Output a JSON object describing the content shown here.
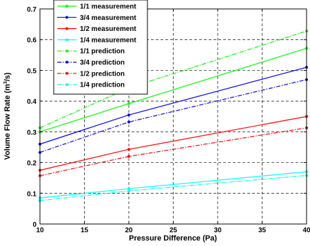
{
  "chart_data": {
    "type": "line",
    "xlabel": "Pressure Difference (Pa)",
    "ylabel_main": "Volume Flow Rate (m",
    "ylabel_sup": "3",
    "ylabel_tail": "/s)",
    "xlim": [
      10,
      40
    ],
    "ylim": [
      0,
      0.7
    ],
    "x_ticks": [
      "10",
      "15",
      "20",
      "25",
      "30",
      "35",
      "40"
    ],
    "y_ticks": [
      "0",
      "0.1",
      "0.2",
      "0.3",
      "0.4",
      "0.5",
      "0.6",
      "0.7"
    ],
    "grid": true,
    "legend_position": "top-left",
    "series": [
      {
        "name": "1/1 measurement",
        "color": "#00ff00",
        "style": "solid",
        "x": [
          10,
          20,
          40
        ],
        "y": [
          0.3,
          0.392,
          0.572
        ]
      },
      {
        "name": "3/4 measurement",
        "color": "#0000ff",
        "style": "solid",
        "x": [
          10,
          20,
          40
        ],
        "y": [
          0.26,
          0.355,
          0.51
        ]
      },
      {
        "name": "1/2 measurement",
        "color": "#ff0000",
        "style": "solid",
        "x": [
          10,
          20,
          40
        ],
        "y": [
          0.175,
          0.243,
          0.35
        ]
      },
      {
        "name": "1/4 measurement",
        "color": "#00ffff",
        "style": "solid",
        "x": [
          10,
          20,
          40
        ],
        "y": [
          0.085,
          0.115,
          0.17
        ]
      },
      {
        "name": "1/1 prediction",
        "color": "#00ff00",
        "style": "dashdot",
        "x": [
          10,
          20,
          40
        ],
        "y": [
          0.313,
          0.443,
          0.628
        ]
      },
      {
        "name": "3/4 prediction",
        "color": "#0000ff",
        "style": "dashdot",
        "x": [
          10,
          20,
          40
        ],
        "y": [
          0.233,
          0.332,
          0.47
        ]
      },
      {
        "name": "1/2 prediction",
        "color": "#ff0000",
        "style": "dashdot",
        "x": [
          10,
          20,
          40
        ],
        "y": [
          0.157,
          0.22,
          0.313
        ]
      },
      {
        "name": "1/4 prediction",
        "color": "#00ffff",
        "style": "dashdot",
        "x": [
          10,
          20,
          40
        ],
        "y": [
          0.076,
          0.108,
          0.158
        ]
      }
    ]
  }
}
